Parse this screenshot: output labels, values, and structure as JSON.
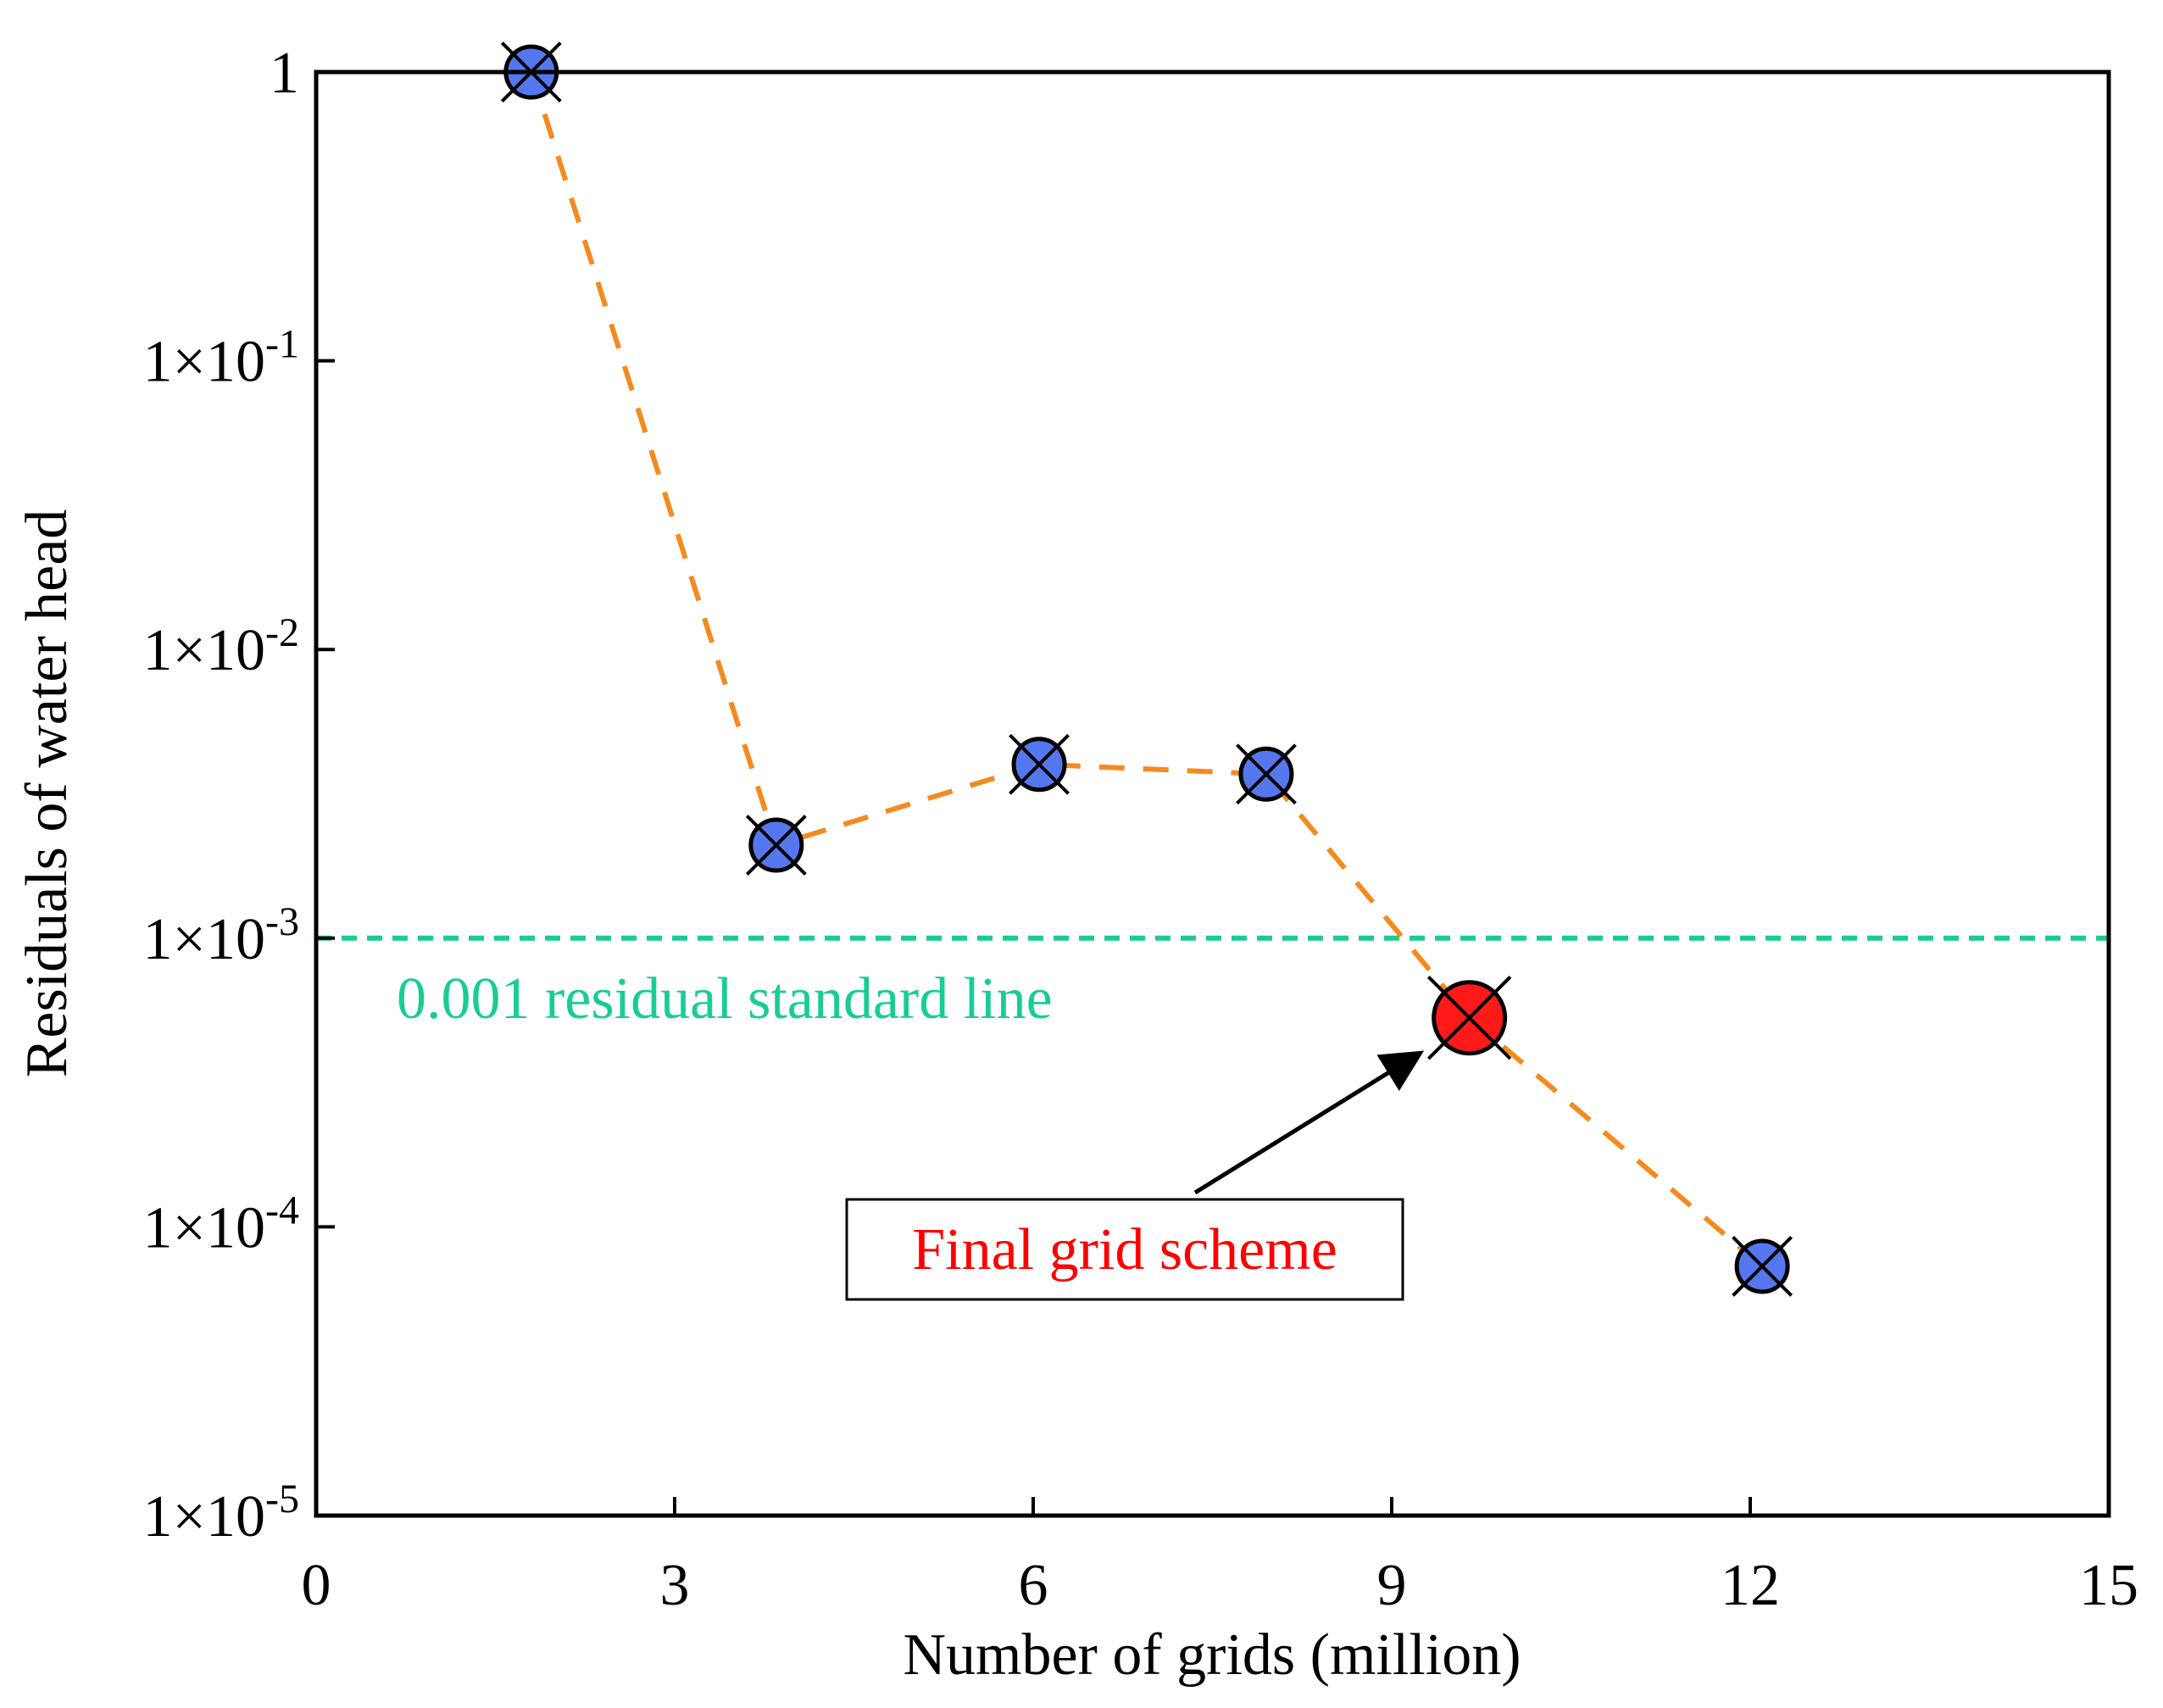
{
  "chart_data": {
    "type": "scatter",
    "title": "",
    "xlabel": "Number of grids (million)",
    "ylabel": "Residuals of water head",
    "xlim": [
      0,
      15
    ],
    "ylim": [
      1e-05,
      1
    ],
    "yscale": "log",
    "grid": false,
    "x_ticks": [
      {
        "value": 0,
        "label": "0"
      },
      {
        "value": 3,
        "label": "3"
      },
      {
        "value": 6,
        "label": "6"
      },
      {
        "value": 9,
        "label": "9"
      },
      {
        "value": 12,
        "label": "12"
      },
      {
        "value": 15,
        "label": "15"
      }
    ],
    "y_ticks": [
      {
        "value": 1,
        "mantissa": "1",
        "exponent": ""
      },
      {
        "value": 0.1,
        "mantissa": "1×10",
        "exponent": "-1"
      },
      {
        "value": 0.01,
        "mantissa": "1×10",
        "exponent": "-2"
      },
      {
        "value": 0.001,
        "mantissa": "1×10",
        "exponent": "-3"
      },
      {
        "value": 0.0001,
        "mantissa": "1×10",
        "exponent": "-4"
      },
      {
        "value": 1e-05,
        "mantissa": "1×10",
        "exponent": "-5"
      }
    ],
    "series": [
      {
        "name": "Residuals",
        "line_style": "dashed",
        "line_color": "#f58a1f",
        "marker_color": "#5577ee",
        "highlight_color": "#ff1a1a",
        "points": [
          {
            "x": 1.8,
            "y": 1.0,
            "highlight": false
          },
          {
            "x": 3.85,
            "y": 0.0021,
            "highlight": false
          },
          {
            "x": 6.05,
            "y": 0.004,
            "highlight": false
          },
          {
            "x": 7.95,
            "y": 0.0037,
            "highlight": false
          },
          {
            "x": 9.65,
            "y": 0.00053,
            "highlight": true
          },
          {
            "x": 12.1,
            "y": 7.3e-05,
            "highlight": false
          }
        ]
      }
    ],
    "reference_line": {
      "value": 0.001,
      "label": "0.001 residual standard line",
      "color": "#19cc95"
    },
    "annotation": {
      "text": "Final grid scheme",
      "text_color": "#ff0000",
      "target_point_index": 4
    }
  }
}
